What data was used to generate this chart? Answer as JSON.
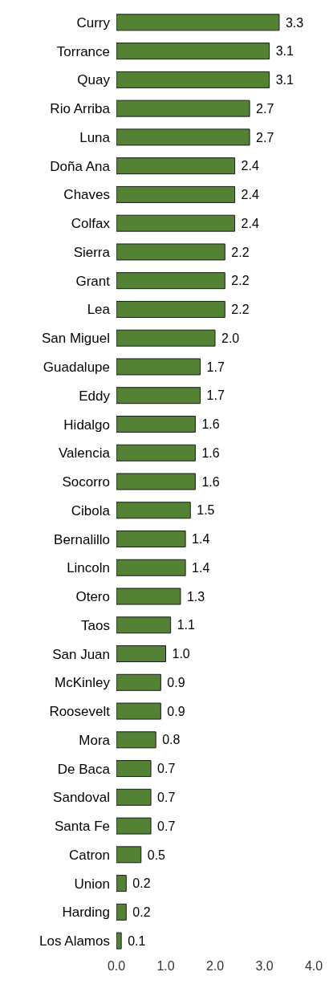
{
  "chart_data": {
    "type": "bar",
    "orientation": "horizontal",
    "categories": [
      "Curry",
      "Torrance",
      "Quay",
      "Rio Arriba",
      "Luna",
      "Doña Ana",
      "Chaves",
      "Colfax",
      "Sierra",
      "Grant",
      "Lea",
      "San Miguel",
      "Guadalupe",
      "Eddy",
      "Hidalgo",
      "Valencia",
      "Socorro",
      "Cibola",
      "Bernalillo",
      "Lincoln",
      "Otero",
      "Taos",
      "San Juan",
      "McKinley",
      "Roosevelt",
      "Mora",
      "De Baca",
      "Sandoval",
      "Santa Fe",
      "Catron",
      "Union",
      "Harding",
      "Los Alamos"
    ],
    "values": [
      3.3,
      3.1,
      3.1,
      2.7,
      2.7,
      2.4,
      2.4,
      2.4,
      2.2,
      2.2,
      2.2,
      2.0,
      1.7,
      1.7,
      1.6,
      1.6,
      1.6,
      1.5,
      1.4,
      1.4,
      1.3,
      1.1,
      1.0,
      0.9,
      0.9,
      0.8,
      0.7,
      0.7,
      0.7,
      0.5,
      0.2,
      0.2,
      0.1
    ],
    "value_labels": [
      "3.3",
      "3.1",
      "3.1",
      "2.7",
      "2.7",
      "2.4",
      "2.4",
      "2.4",
      "2.2",
      "2.2",
      "2.2",
      "2.0",
      "1.7",
      "1.7",
      "1.6",
      "1.6",
      "1.6",
      "1.5",
      "1.4",
      "1.4",
      "1.3",
      "1.1",
      "1.0",
      "0.9",
      "0.9",
      "0.8",
      "0.7",
      "0.7",
      "0.7",
      "0.5",
      "0.2",
      "0.2",
      "0.1"
    ],
    "color": "#548235",
    "xlim": [
      0,
      4
    ],
    "xticks": [
      {
        "value": 0,
        "label": "0.0"
      },
      {
        "value": 1,
        "label": "1.0"
      },
      {
        "value": 2,
        "label": "2.0"
      },
      {
        "value": 3,
        "label": "3.0"
      },
      {
        "value": 4,
        "label": "4.0"
      }
    ],
    "grid": false
  }
}
